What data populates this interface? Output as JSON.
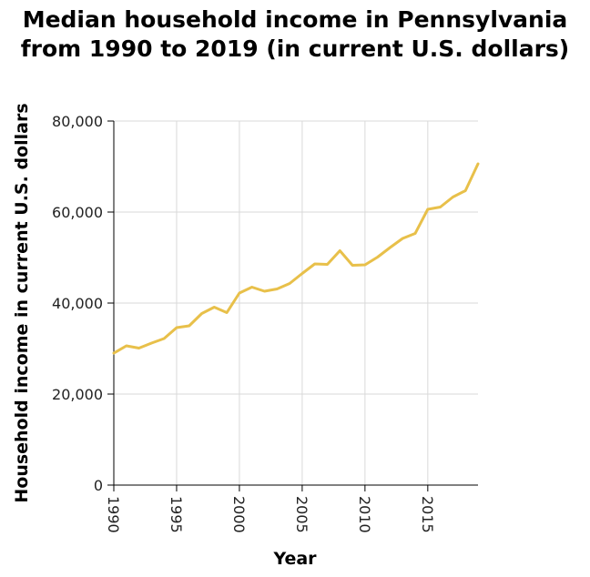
{
  "chart_data": {
    "type": "line",
    "title_lines": [
      "Median household income in Pennsylvania",
      "from 1990 to 2019 (in current U.S. dollars)"
    ],
    "xlabel": "Year",
    "ylabel": "Household income in current U.S. dollars",
    "xlim": [
      1990,
      2019
    ],
    "ylim": [
      0,
      80000
    ],
    "x_ticks": [
      1990,
      1995,
      2000,
      2005,
      2010,
      2015
    ],
    "x_tick_labels": [
      "1990",
      "1995",
      "2000",
      "2005",
      "2010",
      "2015"
    ],
    "y_ticks": [
      0,
      20000,
      40000,
      60000,
      80000
    ],
    "y_tick_labels": [
      "0",
      "20,000",
      "40,000",
      "60,000",
      "80,000"
    ],
    "grid": true,
    "line_color": "#e8c04a",
    "series": [
      {
        "x": [
          1990,
          1991,
          1992,
          1993,
          1994,
          1995,
          1996,
          1997,
          1998,
          1999,
          2000,
          2001,
          2002,
          2003,
          2004,
          2005,
          2006,
          2007,
          2008,
          2009,
          2010,
          2011,
          2012,
          2013,
          2014,
          2015,
          2016,
          2017,
          2018,
          2019
        ],
        "values": [
          29000,
          30600,
          30100,
          31200,
          32200,
          34600,
          35000,
          37700,
          39100,
          37900,
          42200,
          43500,
          42600,
          43100,
          44300,
          46500,
          48600,
          48500,
          51500,
          48300,
          48400,
          50100,
          52200,
          54200,
          55300,
          60600,
          61100,
          63300,
          64700,
          70600
        ]
      }
    ]
  }
}
